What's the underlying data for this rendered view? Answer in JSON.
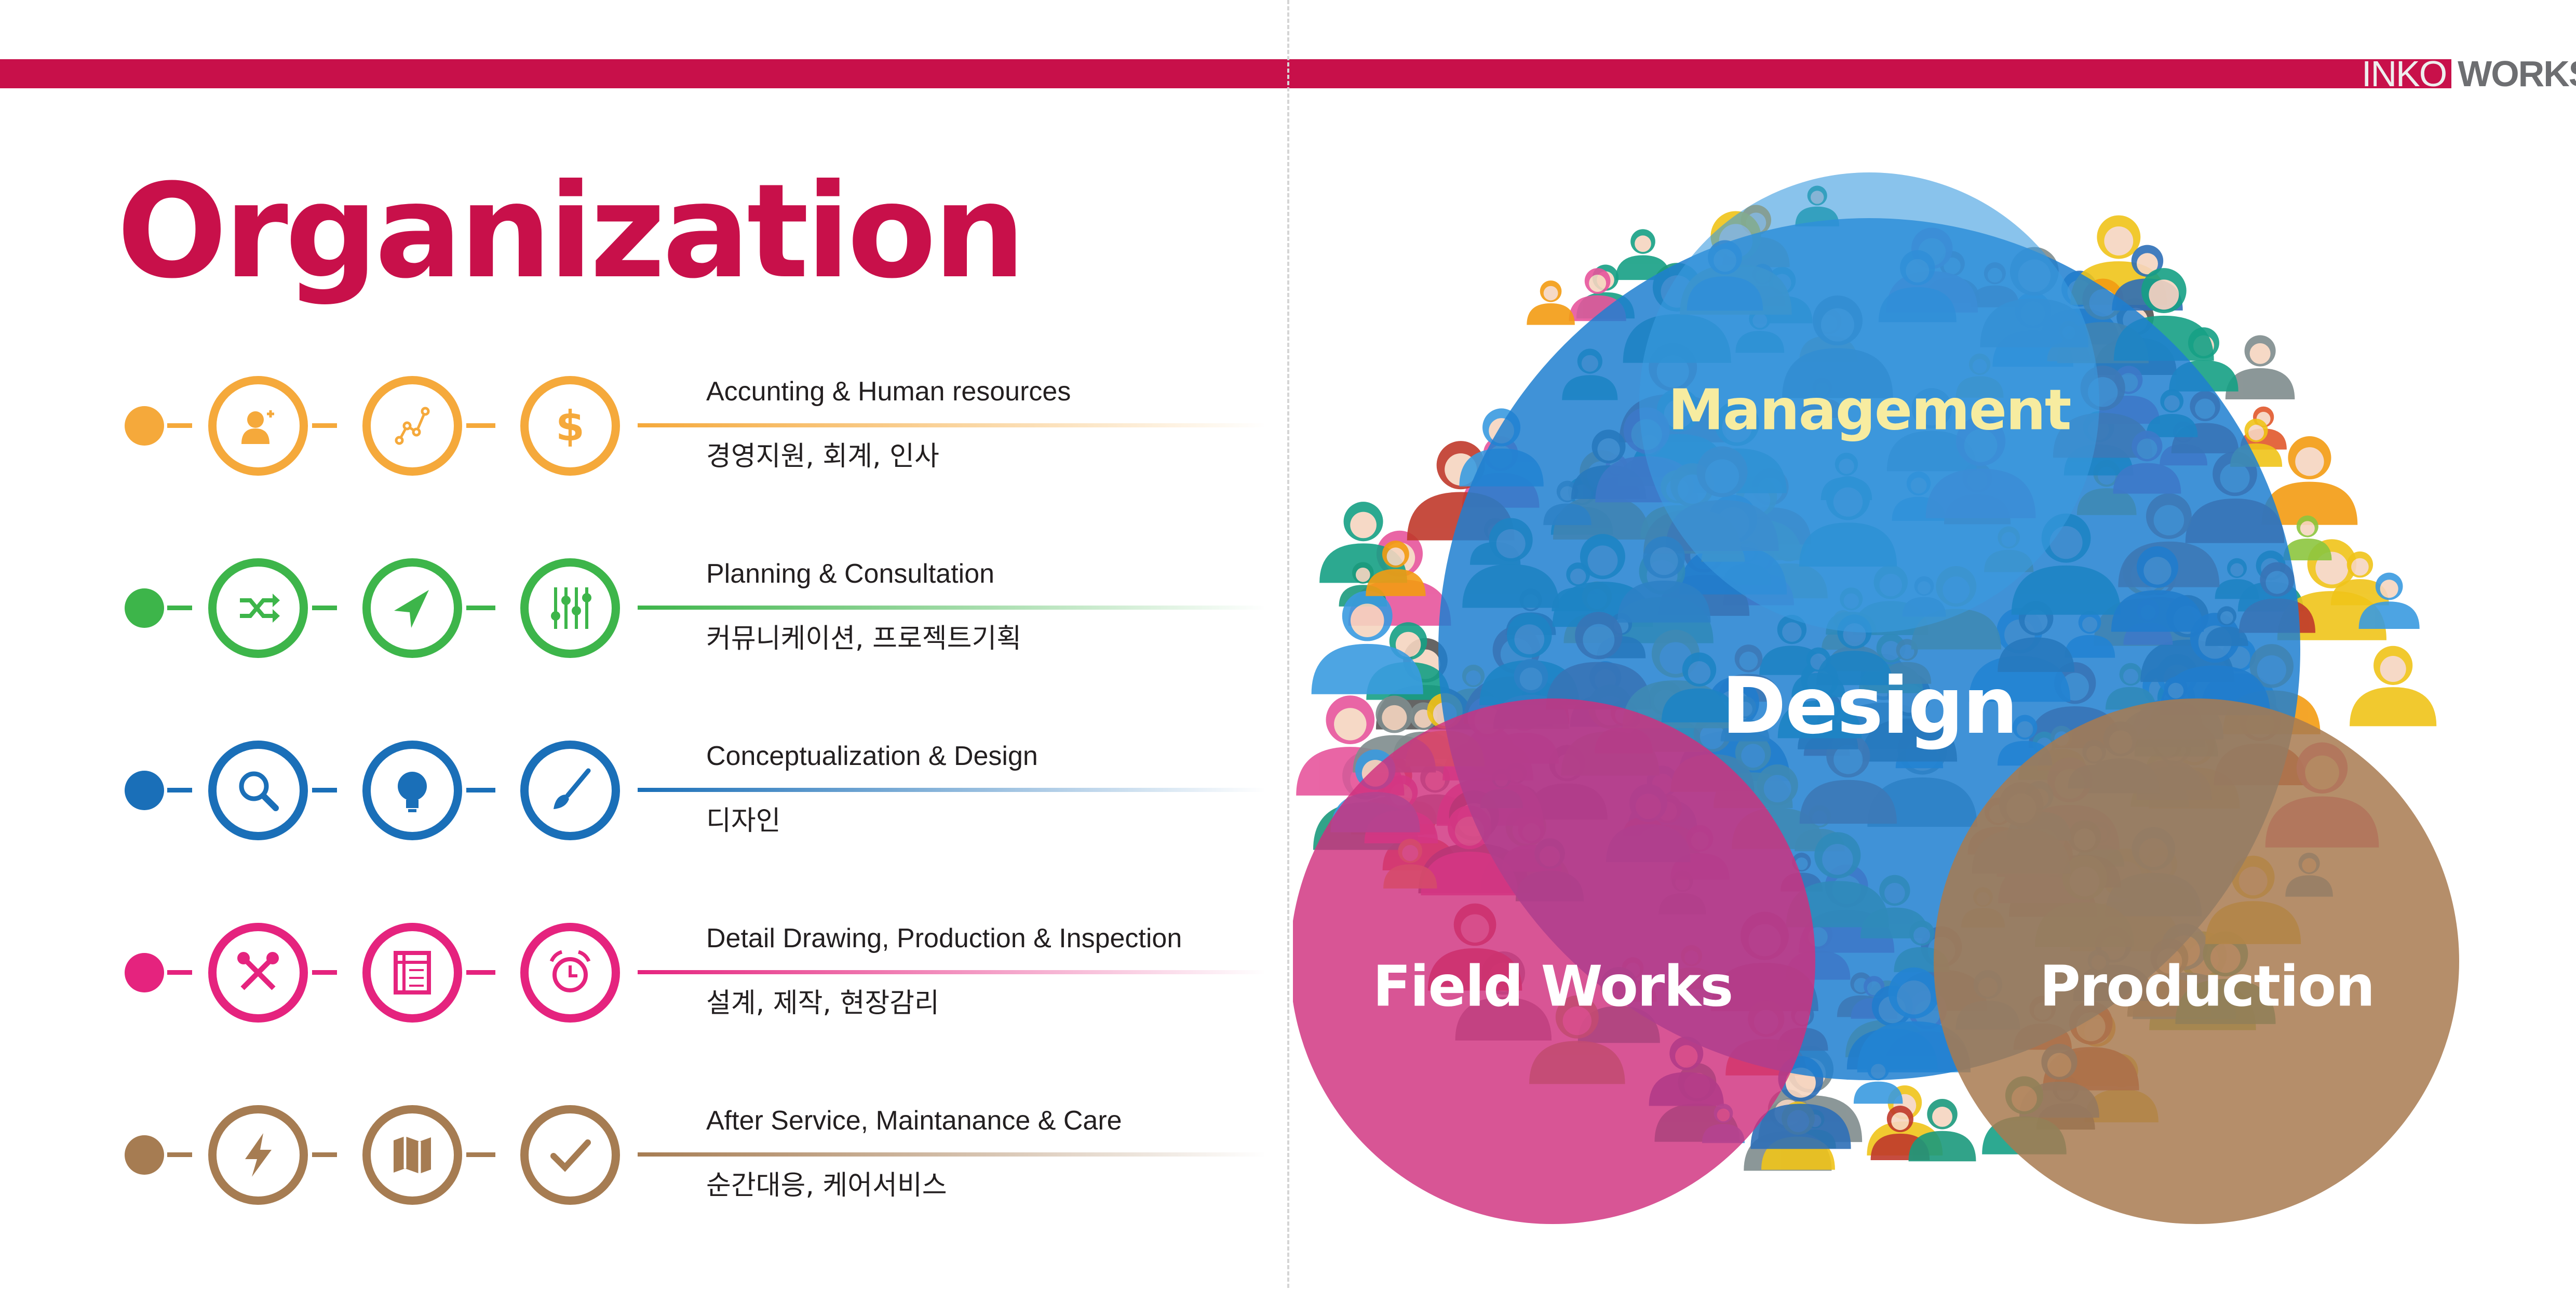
{
  "brand": {
    "logo_part1": "INKO",
    "logo_part2": "WORKS",
    "accent": "#c8104a"
  },
  "page_title": "Organization",
  "rows": [
    {
      "color": "#f5a93b",
      "icons": [
        "user-add-icon",
        "line-graph-icon",
        "dollar-icon"
      ],
      "en": "Accunting & Human resources",
      "ko": "경영지원, 회계, 인사"
    },
    {
      "color": "#3db54a",
      "icons": [
        "shuffle-icon",
        "navigation-arrow-icon",
        "equalizer-sliders-icon"
      ],
      "en": "Planning & Consultation",
      "ko": "커뮤니케이션, 프로젝트기획"
    },
    {
      "color": "#1a6fb8",
      "icons": [
        "search-icon",
        "lightbulb-icon",
        "paintbrush-icon"
      ],
      "en": "Conceptualization & Design",
      "ko": "디자인"
    },
    {
      "color": "#e5237e",
      "icons": [
        "tools-icon",
        "notepad-icon",
        "alarm-clock-icon"
      ],
      "en": "Detail Drawing, Production & Inspection",
      "ko": "설계, 제작, 현장감리"
    },
    {
      "color": "#a67c52",
      "icons": [
        "lightning-icon",
        "map-icon",
        "checkmark-icon"
      ],
      "en": "After Service, Maintanance & Care",
      "ko": "순간대응, 케어서비스"
    }
  ],
  "venn": {
    "management": "Management",
    "design": "Design",
    "field_works": "Field Works",
    "production": "Production",
    "colors": {
      "design": "#1f7fd0",
      "management": "#3a9be0",
      "field_works": "#d0307e",
      "production": "#a87a50",
      "management_text": "#f7eca0"
    }
  }
}
